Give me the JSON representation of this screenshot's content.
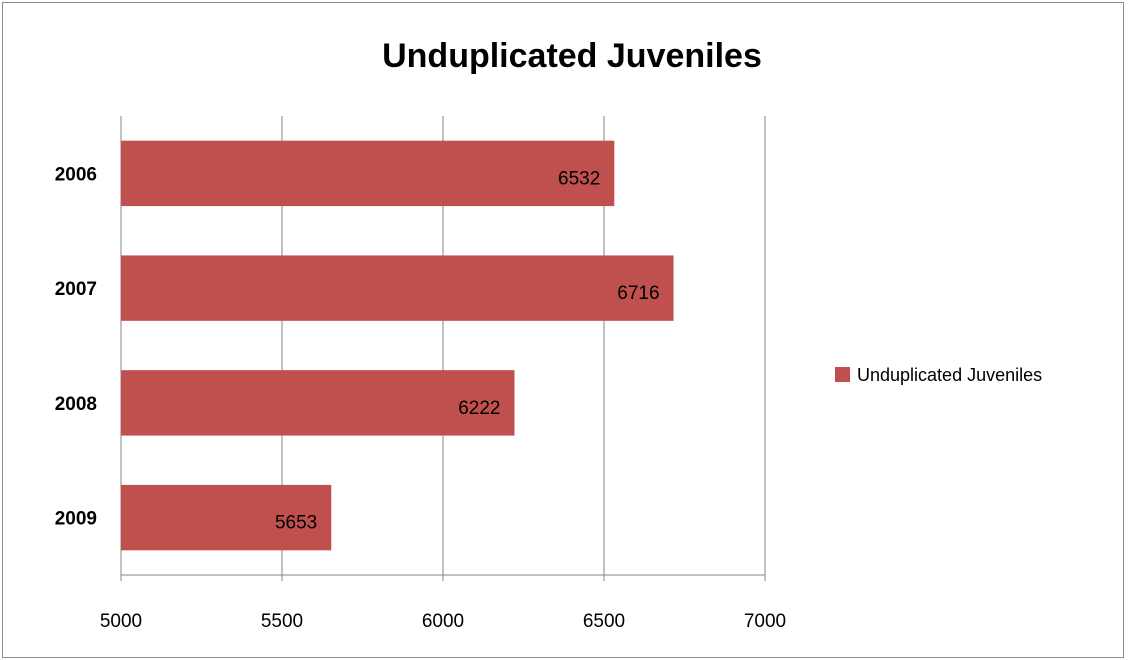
{
  "chart_data": {
    "type": "bar",
    "orientation": "horizontal",
    "title": "Unduplicated Juveniles",
    "xlabel": "",
    "ylabel": "",
    "categories": [
      "2006",
      "2007",
      "2008",
      "2009"
    ],
    "series": [
      {
        "name": "Unduplicated Juveniles",
        "values": [
          6532,
          6716,
          6222,
          5653
        ],
        "color": "#c0504d"
      }
    ],
    "xlim": [
      5000,
      7000
    ],
    "xticks": [
      5000,
      5500,
      6000,
      6500,
      7000
    ],
    "xtick_labels": [
      "5000",
      "5500",
      "6000",
      "6500",
      "7000"
    ],
    "data_labels": [
      "6532",
      "6716",
      "6222",
      "5653"
    ],
    "grid": "vertical",
    "legend_position": "right"
  }
}
